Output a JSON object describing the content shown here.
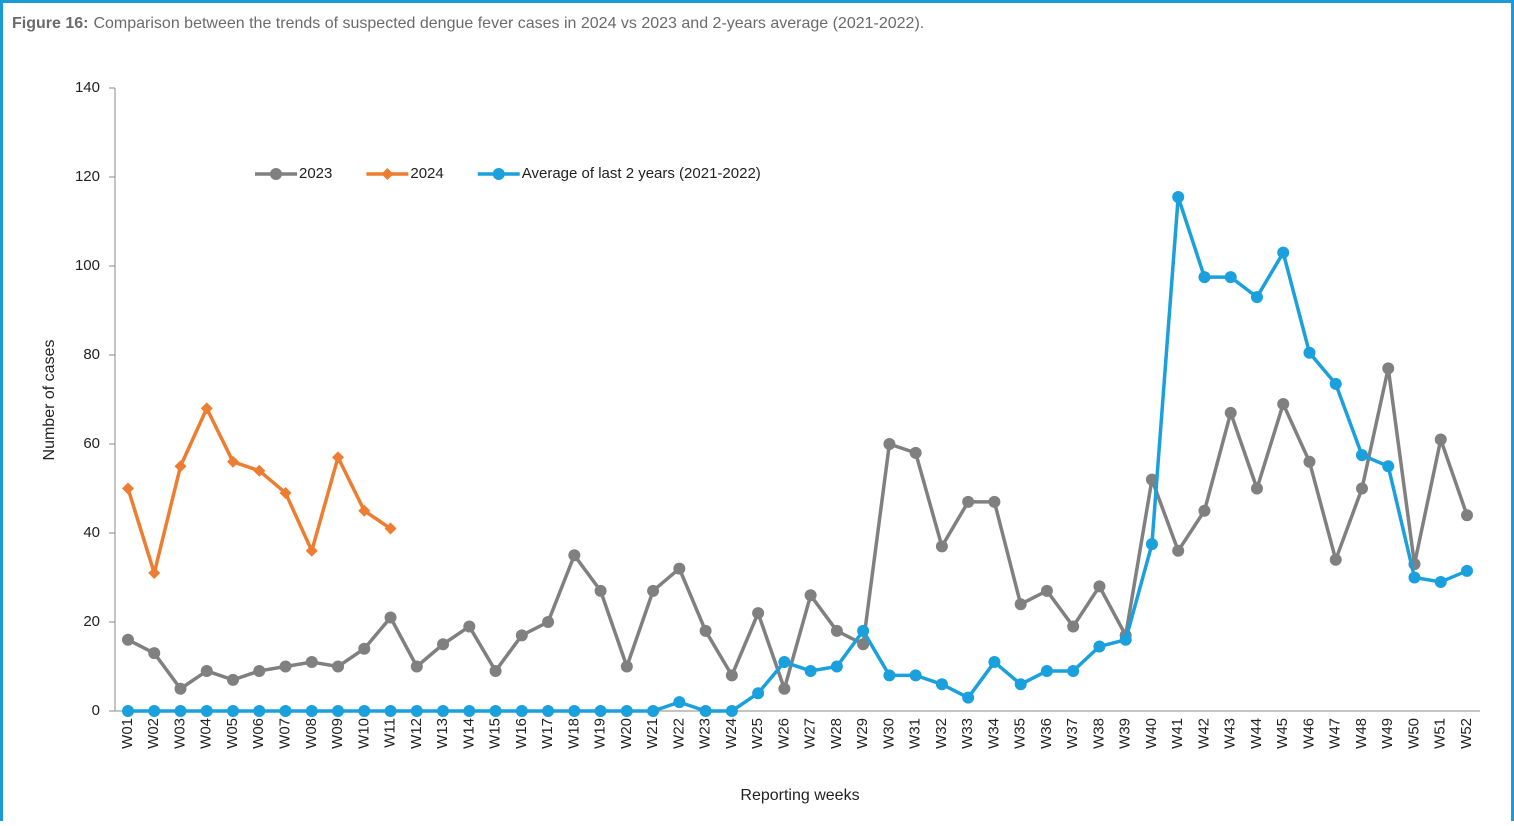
{
  "chart_data": {
    "type": "line",
    "title_label": "Figure 16:",
    "title": "Comparison between the trends of suspected dengue fever cases in 2024 vs 2023 and 2-years average (2021-2022).",
    "x_label": "Reporting weeks",
    "y_label": "Number of cases",
    "categories": [
      "W01",
      "W02",
      "W03",
      "W04",
      "W05",
      "W06",
      "W07",
      "W08",
      "W09",
      "W10",
      "W11",
      "W12",
      "W13",
      "W14",
      "W15",
      "W16",
      "W17",
      "W18",
      "W19",
      "W20",
      "W21",
      "W22",
      "W23",
      "W24",
      "W25",
      "W26",
      "W27",
      "W28",
      "W29",
      "W30",
      "W31",
      "W32",
      "W33",
      "W34",
      "W35",
      "W36",
      "W37",
      "W38",
      "W39",
      "W40",
      "W41",
      "W42",
      "W43",
      "W44",
      "W45",
      "W46",
      "W47",
      "W48",
      "W49",
      "W50",
      "W51",
      "W52"
    ],
    "series": [
      {
        "name": "2023",
        "color": "#808080",
        "marker": "circle",
        "values": [
          16,
          13,
          5,
          9,
          7,
          9,
          10,
          11,
          10,
          14,
          21,
          10,
          15,
          19,
          9,
          17,
          20,
          35,
          27,
          10,
          27,
          32,
          18,
          8,
          22,
          5,
          26,
          18,
          15,
          60,
          58,
          37,
          47,
          47,
          24,
          27,
          19,
          28,
          17,
          52,
          36,
          45,
          67,
          50,
          69,
          56,
          34,
          50,
          77,
          33,
          61,
          44
        ]
      },
      {
        "name": "2024",
        "color": "#ed7d31",
        "marker": "diamond",
        "values": [
          50,
          31,
          55,
          68,
          56,
          54,
          49,
          36,
          57,
          45,
          41,
          null,
          null,
          null,
          null,
          null,
          null,
          null,
          null,
          null,
          null,
          null,
          null,
          null,
          null,
          null,
          null,
          null,
          null,
          null,
          null,
          null,
          null,
          null,
          null,
          null,
          null,
          null,
          null,
          null,
          null,
          null,
          null,
          null,
          null,
          null,
          null,
          null,
          null,
          null,
          null,
          null
        ]
      },
      {
        "name": "Average of last 2 years (2021-2022)",
        "color": "#1aa0dc",
        "marker": "circle",
        "values": [
          0,
          0,
          0,
          0,
          0,
          0,
          0,
          0,
          0,
          0,
          0,
          0,
          0,
          0,
          0,
          0,
          0,
          0,
          0,
          0,
          0,
          2,
          0,
          0,
          4,
          11,
          9,
          10,
          18,
          8,
          8,
          6,
          3,
          11,
          6,
          9,
          9,
          14.5,
          16,
          37.5,
          115.5,
          97.5,
          97.5,
          93,
          103,
          80.5,
          73.5,
          57.5,
          55,
          30,
          29,
          31.5
        ]
      }
    ],
    "ylim": [
      0,
      140
    ],
    "yticks": [
      0,
      20,
      40,
      60,
      80,
      100,
      120,
      140
    ],
    "grid": false,
    "legend": "top-left"
  }
}
